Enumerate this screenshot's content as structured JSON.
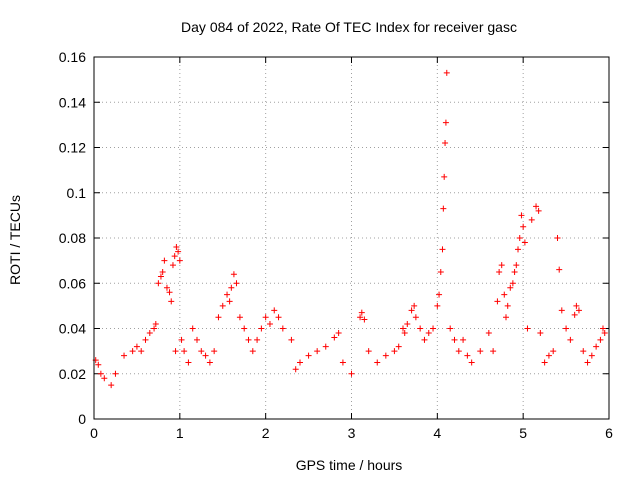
{
  "chart_data": {
    "type": "scatter",
    "title": "Day 084 of 2022, Rate Of TEC Index for receiver gasc",
    "xlabel": "GPS time / hours",
    "ylabel": "ROTI / TECUs",
    "xlim": [
      0,
      6
    ],
    "ylim": [
      0,
      0.16
    ],
    "x_ticks": [
      0,
      1,
      2,
      3,
      4,
      5,
      6
    ],
    "x_tick_labels": [
      "0",
      "1",
      "2",
      "3",
      "4",
      "5",
      "6"
    ],
    "y_ticks": [
      0,
      0.02,
      0.04,
      0.06,
      0.08,
      0.1,
      0.12,
      0.14,
      0.16
    ],
    "y_tick_labels": [
      "0",
      "0.02",
      "0.04",
      "0.06",
      "0.08",
      "0.1",
      "0.12",
      "0.14",
      "0.16"
    ],
    "grid": true,
    "legend": "none",
    "marker": "plus",
    "color": "#ff0000",
    "series": [
      {
        "points": [
          [
            0.02,
            0.026
          ],
          [
            0.05,
            0.024
          ],
          [
            0.08,
            0.02
          ],
          [
            0.12,
            0.018
          ],
          [
            0.2,
            0.015
          ],
          [
            0.25,
            0.02
          ],
          [
            0.35,
            0.028
          ],
          [
            0.45,
            0.03
          ],
          [
            0.5,
            0.032
          ],
          [
            0.55,
            0.03
          ],
          [
            0.6,
            0.035
          ],
          [
            0.65,
            0.038
          ],
          [
            0.7,
            0.04
          ],
          [
            0.72,
            0.042
          ],
          [
            0.75,
            0.06
          ],
          [
            0.78,
            0.063
          ],
          [
            0.8,
            0.065
          ],
          [
            0.82,
            0.07
          ],
          [
            0.85,
            0.058
          ],
          [
            0.88,
            0.056
          ],
          [
            0.9,
            0.052
          ],
          [
            0.92,
            0.068
          ],
          [
            0.94,
            0.072
          ],
          [
            0.96,
            0.076
          ],
          [
            0.98,
            0.074
          ],
          [
            1.0,
            0.07
          ],
          [
            0.95,
            0.03
          ],
          [
            1.02,
            0.035
          ],
          [
            1.05,
            0.03
          ],
          [
            1.1,
            0.025
          ],
          [
            1.15,
            0.04
          ],
          [
            1.2,
            0.035
          ],
          [
            1.25,
            0.03
          ],
          [
            1.3,
            0.028
          ],
          [
            1.35,
            0.025
          ],
          [
            1.4,
            0.03
          ],
          [
            1.45,
            0.045
          ],
          [
            1.5,
            0.05
          ],
          [
            1.55,
            0.055
          ],
          [
            1.58,
            0.052
          ],
          [
            1.6,
            0.058
          ],
          [
            1.63,
            0.064
          ],
          [
            1.66,
            0.06
          ],
          [
            1.7,
            0.045
          ],
          [
            1.75,
            0.04
          ],
          [
            1.8,
            0.035
          ],
          [
            1.85,
            0.03
          ],
          [
            1.9,
            0.035
          ],
          [
            1.95,
            0.04
          ],
          [
            2.0,
            0.045
          ],
          [
            2.05,
            0.042
          ],
          [
            2.1,
            0.048
          ],
          [
            2.15,
            0.045
          ],
          [
            2.2,
            0.04
          ],
          [
            2.3,
            0.035
          ],
          [
            2.35,
            0.022
          ],
          [
            2.4,
            0.025
          ],
          [
            2.5,
            0.028
          ],
          [
            2.6,
            0.03
          ],
          [
            2.7,
            0.032
          ],
          [
            2.8,
            0.036
          ],
          [
            2.85,
            0.038
          ],
          [
            2.9,
            0.025
          ],
          [
            3.0,
            0.02
          ],
          [
            3.1,
            0.045
          ],
          [
            3.12,
            0.047
          ],
          [
            3.15,
            0.044
          ],
          [
            3.2,
            0.03
          ],
          [
            3.3,
            0.025
          ],
          [
            3.4,
            0.028
          ],
          [
            3.5,
            0.03
          ],
          [
            3.55,
            0.032
          ],
          [
            3.6,
            0.04
          ],
          [
            3.62,
            0.038
          ],
          [
            3.65,
            0.042
          ],
          [
            3.7,
            0.048
          ],
          [
            3.73,
            0.05
          ],
          [
            3.75,
            0.045
          ],
          [
            3.8,
            0.04
          ],
          [
            3.85,
            0.035
          ],
          [
            3.9,
            0.038
          ],
          [
            3.95,
            0.04
          ],
          [
            4.0,
            0.05
          ],
          [
            4.02,
            0.055
          ],
          [
            4.04,
            0.065
          ],
          [
            4.06,
            0.075
          ],
          [
            4.07,
            0.093
          ],
          [
            4.08,
            0.107
          ],
          [
            4.09,
            0.122
          ],
          [
            4.1,
            0.131
          ],
          [
            4.11,
            0.153
          ],
          [
            4.15,
            0.04
          ],
          [
            4.2,
            0.035
          ],
          [
            4.25,
            0.03
          ],
          [
            4.3,
            0.035
          ],
          [
            4.35,
            0.028
          ],
          [
            4.4,
            0.025
          ],
          [
            4.5,
            0.03
          ],
          [
            4.6,
            0.038
          ],
          [
            4.65,
            0.03
          ],
          [
            4.7,
            0.052
          ],
          [
            4.72,
            0.065
          ],
          [
            4.75,
            0.068
          ],
          [
            4.78,
            0.055
          ],
          [
            4.8,
            0.045
          ],
          [
            4.82,
            0.05
          ],
          [
            4.85,
            0.058
          ],
          [
            4.88,
            0.06
          ],
          [
            4.9,
            0.065
          ],
          [
            4.92,
            0.068
          ],
          [
            4.94,
            0.075
          ],
          [
            4.96,
            0.08
          ],
          [
            4.98,
            0.09
          ],
          [
            5.0,
            0.085
          ],
          [
            5.02,
            0.078
          ],
          [
            5.05,
            0.04
          ],
          [
            5.1,
            0.088
          ],
          [
            5.15,
            0.094
          ],
          [
            5.18,
            0.092
          ],
          [
            5.2,
            0.038
          ],
          [
            5.25,
            0.025
          ],
          [
            5.3,
            0.028
          ],
          [
            5.35,
            0.03
          ],
          [
            5.4,
            0.08
          ],
          [
            5.42,
            0.066
          ],
          [
            5.45,
            0.048
          ],
          [
            5.5,
            0.04
          ],
          [
            5.55,
            0.035
          ],
          [
            5.6,
            0.046
          ],
          [
            5.62,
            0.05
          ],
          [
            5.65,
            0.048
          ],
          [
            5.7,
            0.03
          ],
          [
            5.75,
            0.025
          ],
          [
            5.8,
            0.028
          ],
          [
            5.85,
            0.032
          ],
          [
            5.9,
            0.035
          ],
          [
            5.93,
            0.04
          ],
          [
            5.95,
            0.038
          ]
        ]
      }
    ]
  }
}
